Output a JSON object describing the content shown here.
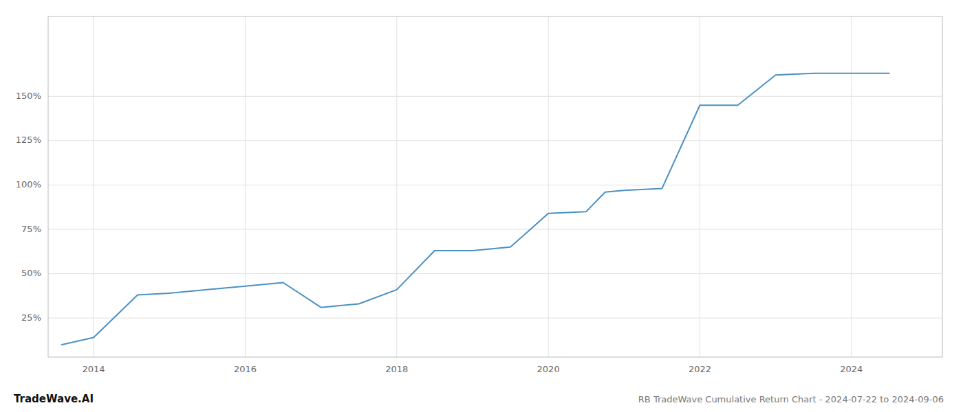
{
  "chart_data": {
    "type": "line",
    "title": "RB TradeWave Cumulative Return Chart - 2024-07-22 to 2024-09-06",
    "annotations": [
      "TradeWave.AI"
    ],
    "x": [
      2013.58,
      2014.0,
      2014.58,
      2015.0,
      2015.5,
      2016.0,
      2016.5,
      2017.0,
      2017.5,
      2018.0,
      2018.5,
      2019.0,
      2019.5,
      2020.0,
      2020.5,
      2020.75,
      2021.0,
      2021.5,
      2022.0,
      2022.5,
      2023.0,
      2023.5,
      2024.0,
      2024.5
    ],
    "values": [
      10,
      14,
      38,
      39,
      41,
      43,
      45,
      31,
      33,
      41,
      63,
      63,
      65,
      84,
      85,
      96,
      97,
      98,
      145,
      145,
      162,
      163,
      163,
      163
    ],
    "color": "#4a90c4",
    "xlim": [
      2013.4,
      2025.2
    ],
    "ylim": [
      3,
      195
    ],
    "xticks": [
      2014,
      2016,
      2018,
      2020,
      2022,
      2024
    ],
    "yticks": [
      {
        "value": 25,
        "label": "25%"
      },
      {
        "value": 50,
        "label": "50%"
      },
      {
        "value": 75,
        "label": "75%"
      },
      {
        "value": 100,
        "label": "100%"
      },
      {
        "value": 125,
        "label": "125%"
      },
      {
        "value": 150,
        "label": "150%"
      }
    ],
    "grid": true
  }
}
